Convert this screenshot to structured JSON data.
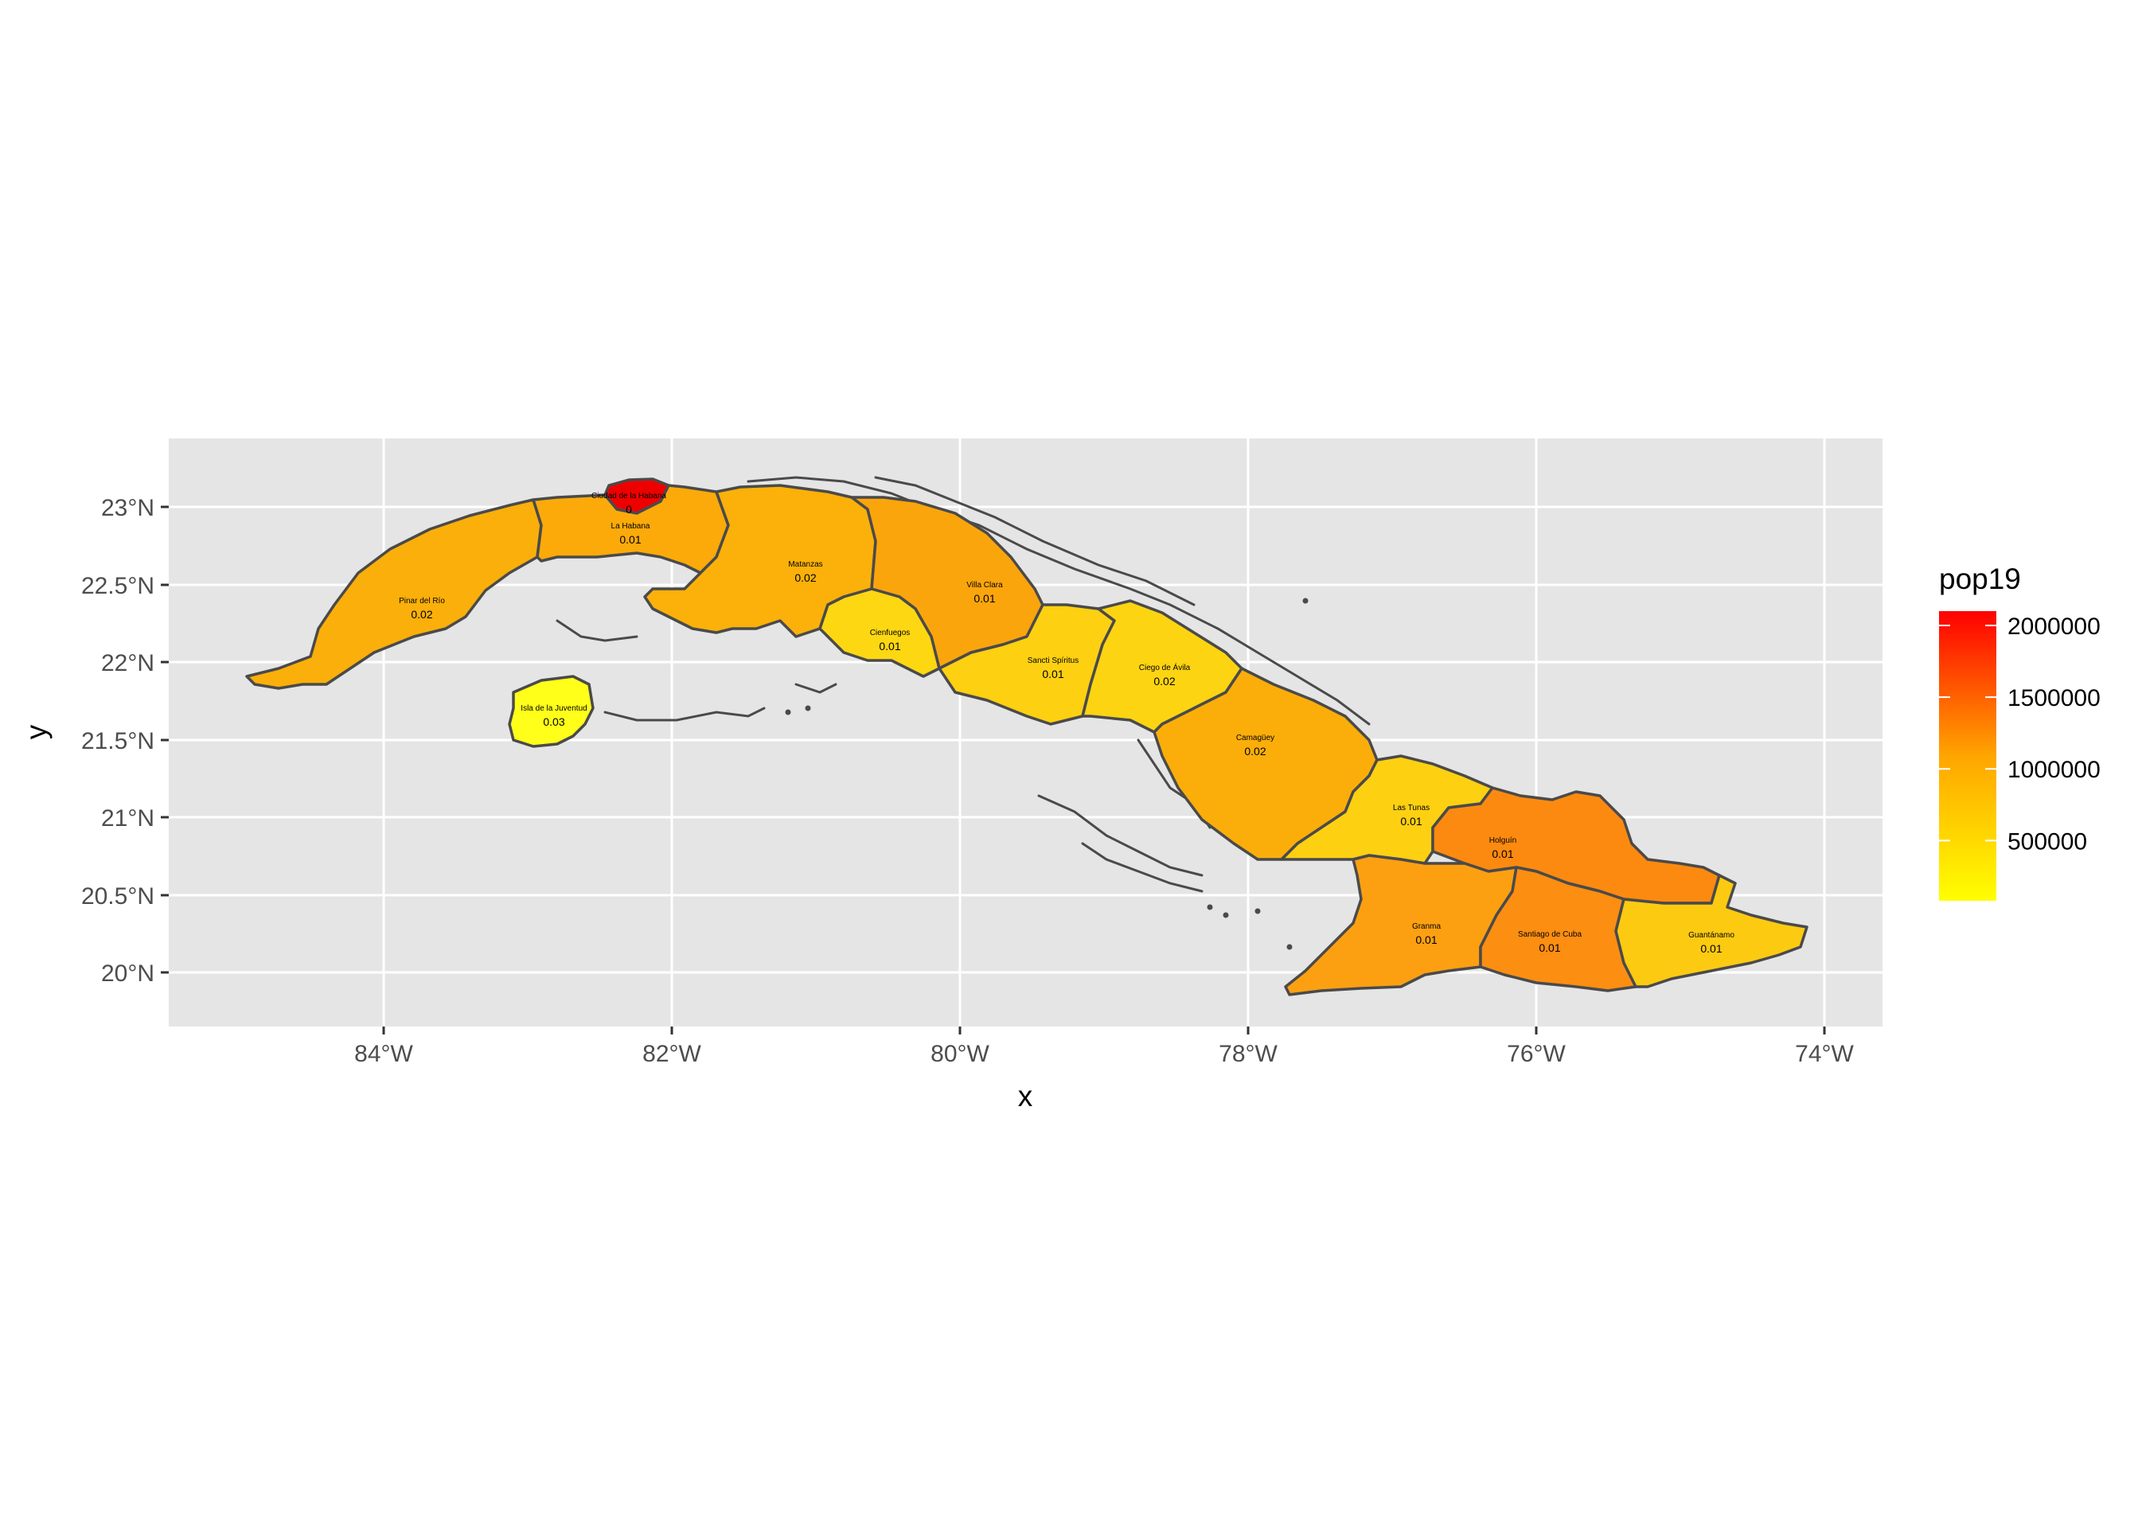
{
  "chart_data": {
    "type": "map",
    "xlabel": "x",
    "ylabel": "y",
    "x_ticks": [
      "84°W",
      "82°W",
      "80°W",
      "78°W",
      "76°W",
      "74°W"
    ],
    "y_ticks": [
      "23°N",
      "22.5°N",
      "22°N",
      "21.5°N",
      "21°N",
      "20.5°N",
      "20°N"
    ],
    "legend": {
      "title": "pop19",
      "labels": [
        "2000000",
        "1500000",
        "1000000",
        "500000"
      ],
      "values": [
        2000000,
        1500000,
        1000000,
        500000
      ],
      "range": [
        80000,
        2100000
      ],
      "low_color": "#ffff00",
      "high_color": "#ff0000"
    },
    "regions": [
      {
        "name": "Pinar del Río",
        "value_label": "0.02",
        "pop19": 580000,
        "fill": "#fbaf0a"
      },
      {
        "name": "Ciudad de la Habana",
        "value_label": "0",
        "pop19": 2080000,
        "fill": "#ef0000"
      },
      {
        "name": "La Habana",
        "value_label": "0.01",
        "pop19": 790000,
        "fill": "#fbaa0a"
      },
      {
        "name": "Matanzas",
        "value_label": "0.02",
        "pop19": 700000,
        "fill": "#fbb10a"
      },
      {
        "name": "Villa Clara",
        "value_label": "0.01",
        "pop19": 780000,
        "fill": "#fba50d"
      },
      {
        "name": "Cienfuegos",
        "value_label": "0.01",
        "pop19": 400000,
        "fill": "#fdd712"
      },
      {
        "name": "Sancti Spíritus",
        "value_label": "0.01",
        "pop19": 465000,
        "fill": "#fdd012"
      },
      {
        "name": "Ciego de Ávila",
        "value_label": "0.02",
        "pop19": 430000,
        "fill": "#fdd412"
      },
      {
        "name": "Camagüey",
        "value_label": "0.02",
        "pop19": 770000,
        "fill": "#fbae0a"
      },
      {
        "name": "Las Tunas",
        "value_label": "0.01",
        "pop19": 535000,
        "fill": "#fdd012"
      },
      {
        "name": "Holguín",
        "value_label": "0.01",
        "pop19": 1030000,
        "fill": "#fc8a10"
      },
      {
        "name": "Granma",
        "value_label": "0.01",
        "pop19": 830000,
        "fill": "#fca012"
      },
      {
        "name": "Santiago de Cuba",
        "value_label": "0.01",
        "pop19": 1050000,
        "fill": "#fc8e12"
      },
      {
        "name": "Guantánamo",
        "value_label": "0.01",
        "pop19": 510000,
        "fill": "#fdca12"
      },
      {
        "name": "Isla de la Juventud",
        "value_label": "0.03",
        "pop19": 84000,
        "fill": "#ffff19"
      }
    ]
  }
}
